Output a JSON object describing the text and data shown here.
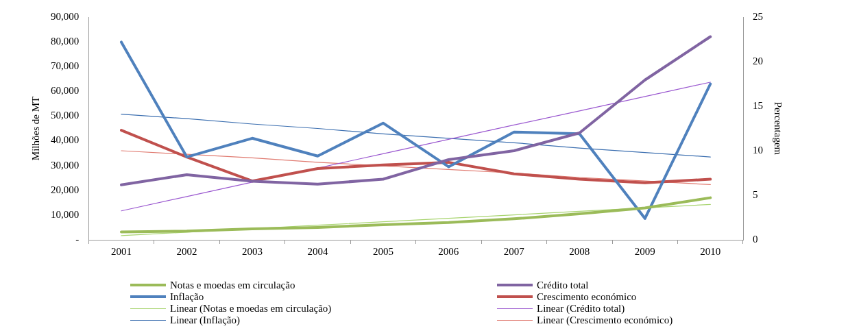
{
  "chart_data": {
    "type": "line",
    "categories": [
      "2001",
      "2002",
      "2003",
      "2004",
      "2005",
      "2006",
      "2007",
      "2008",
      "2009",
      "2010"
    ],
    "ylabel": "Milhões de MT",
    "y2label": "Percentagem",
    "ylim": [
      0,
      90000
    ],
    "yticks": [
      {
        "value": 0,
        "label": "-"
      },
      {
        "value": 10000,
        "label": "10,000"
      },
      {
        "value": 20000,
        "label": "20,000"
      },
      {
        "value": 30000,
        "label": "30,000"
      },
      {
        "value": 40000,
        "label": "40,000"
      },
      {
        "value": 50000,
        "label": "50,000"
      },
      {
        "value": 60000,
        "label": "60,000"
      },
      {
        "value": 70000,
        "label": "70,000"
      },
      {
        "value": 80000,
        "label": "80,000"
      },
      {
        "value": 90000,
        "label": "90,000"
      }
    ],
    "y2lim": [
      0,
      25
    ],
    "y2ticks": [
      0,
      5,
      10,
      15,
      20,
      25
    ],
    "grid": false,
    "legend": "bottom",
    "marker": "none",
    "line_style": "solid",
    "series": [
      {
        "name": "Notas e moedas em circulação",
        "color": "#9bbb59",
        "values": [
          3200,
          3500,
          4400,
          5000,
          6100,
          7000,
          8500,
          10500,
          12900,
          17000
        ]
      },
      {
        "name": "Crédito total",
        "color": "#8064a2",
        "values": [
          22200,
          26300,
          23700,
          22500,
          24500,
          32400,
          36000,
          43200,
          64600,
          82100
        ]
      },
      {
        "name": "Inflação",
        "color": "#4f81bd",
        "axis": "y2",
        "values": [
          22.2,
          9.3,
          11.4,
          9.4,
          13.1,
          8.2,
          12.1,
          11.9,
          2.4,
          17.5
        ]
      },
      {
        "name": "Crescimento económico",
        "color": "#c0504d",
        "axis": "y2",
        "values": [
          12.3,
          9.3,
          6.6,
          8.0,
          8.4,
          8.7,
          7.4,
          6.8,
          6.4,
          6.8
        ]
      },
      {
        "name": "Linear (Notas e moedas em circulação)",
        "color": "#a8d46f",
        "type": "line",
        "values": [
          1700,
          3100,
          4500,
          5900,
          7300,
          8700,
          10100,
          11500,
          12900,
          14300
        ]
      },
      {
        "name": "Linear (Crédito total)",
        "color": "#9b59d0",
        "type": "line",
        "values": [
          11700,
          17500,
          23300,
          29000,
          34800,
          40600,
          46400,
          52100,
          57900,
          63700
        ]
      },
      {
        "name": "Linear (Inflação)",
        "color": "#3c6fb0",
        "type": "line",
        "axis": "y2",
        "values": [
          14.1,
          13.6,
          13.0,
          12.5,
          11.9,
          11.4,
          10.9,
          10.3,
          9.8,
          9.3
        ]
      },
      {
        "name": "Linear (Crescimento económico)",
        "color": "#e07a70",
        "type": "line",
        "axis": "y2",
        "values": [
          10.0,
          9.6,
          9.2,
          8.7,
          8.3,
          7.9,
          7.5,
          7.0,
          6.6,
          6.2
        ]
      }
    ]
  }
}
